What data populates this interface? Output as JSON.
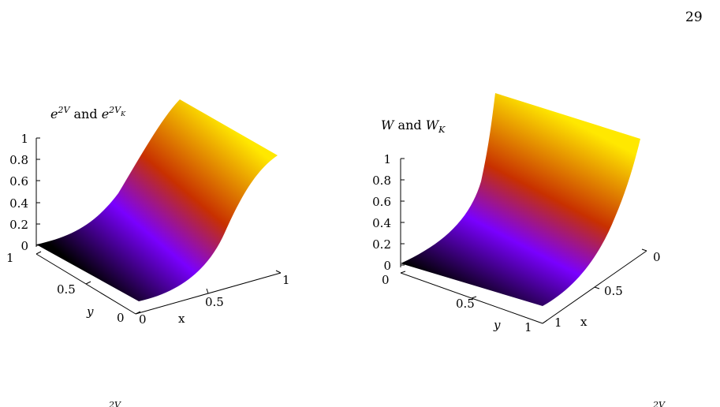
{
  "page": {
    "number": "29"
  },
  "plots": [
    {
      "title": {
        "base": "e",
        "sup": "2V",
        "middle": " and ",
        "base2": "e",
        "sup2": "2V",
        "sub2": "K"
      },
      "ztick_labels": [
        "1",
        "0.8",
        "0.6",
        "0.4",
        "0.2",
        "0"
      ],
      "y_axis": {
        "label": "y",
        "tick_labels": [
          "1",
          "0.5",
          "0"
        ]
      },
      "x_axis": {
        "label": "x",
        "tick_labels": [
          "0",
          "0.5",
          "1"
        ]
      }
    },
    {
      "title": {
        "base": "W",
        "middle": " and ",
        "base2": "W",
        "sub2": "K"
      },
      "ztick_labels": [
        "1",
        "0.8",
        "0.6",
        "0.4",
        "0.2",
        "0"
      ],
      "y_axis": {
        "label": "y",
        "tick_labels": [
          "0",
          "0.5",
          "1"
        ]
      },
      "x_axis": {
        "label": "x",
        "tick_labels": [
          "0",
          "0.5",
          "1"
        ]
      }
    }
  ],
  "chart_data": [
    {
      "type": "surface",
      "title": "e^{2V} and e^{2V_K}",
      "xlabel": "x",
      "ylabel": "y",
      "xlim": [
        0,
        1
      ],
      "ylim": [
        0,
        1
      ],
      "zlim": [
        0,
        1
      ],
      "ztick_labels": [
        "0",
        "0.2",
        "0.4",
        "0.6",
        "0.8",
        "1"
      ],
      "surface_profile_along_x": {
        "x": [
          0,
          0.25,
          0.5,
          0.75,
          1
        ],
        "z": [
          0.0,
          0.12,
          0.5,
          0.88,
          1.0
        ]
      },
      "colormap": [
        "#000000",
        "#7a00ff",
        "#c83000",
        "#ffe800"
      ]
    },
    {
      "type": "surface",
      "title": "W and W_K",
      "xlabel": "x",
      "ylabel": "y",
      "xlim": [
        0,
        1
      ],
      "ylim": [
        0,
        1
      ],
      "zlim": [
        0,
        1
      ],
      "ztick_labels": [
        "0",
        "0.2",
        "0.4",
        "0.6",
        "0.8",
        "1"
      ],
      "surface_profile_along_x": {
        "x": [
          0,
          0.25,
          0.5,
          0.75,
          1
        ],
        "z": [
          0.0,
          0.05,
          0.2,
          0.55,
          1.05
        ]
      },
      "colormap": [
        "#000000",
        "#7a00ff",
        "#c83000",
        "#ffe800"
      ]
    }
  ]
}
